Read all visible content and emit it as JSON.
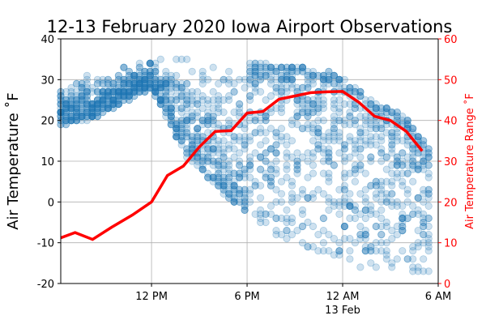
{
  "chart_data": {
    "type": "scatter",
    "title": "12-13 February 2020 Iowa Airport Observations",
    "ylabel": "Air Temperature $^\\circ$F",
    "ylabel_display": "Air Temperature ˚F",
    "y2label": "Air Temperature Range ˚F",
    "x_tick_labels": [
      "12 PM",
      "6 PM",
      "12 AM",
      "6 AM"
    ],
    "x_secondary_label": "13 Feb",
    "x_tick_hours": [
      12,
      18,
      24,
      30
    ],
    "xlim_hours": [
      6.3,
      30
    ],
    "ylim": [
      -20,
      40
    ],
    "y_ticks": [
      -20,
      -10,
      0,
      10,
      20,
      30,
      40
    ],
    "y2lim": [
      0,
      60
    ],
    "y2_ticks": [
      0,
      10,
      20,
      30,
      40,
      50,
      60
    ],
    "grid": true,
    "colors": {
      "scatter": "#1f77b4",
      "range_line": "#ff0000",
      "right_axis": "#ff0000"
    },
    "range_series": {
      "x_hours": [
        6.3,
        7.2,
        8.3,
        9.5,
        10.8,
        12,
        13,
        14,
        15,
        16,
        17,
        18,
        19,
        20,
        21,
        22,
        23,
        24,
        25,
        26,
        27,
        28,
        29
      ],
      "values": [
        11.2,
        12.5,
        10.8,
        13.8,
        16.8,
        20,
        26.5,
        28.8,
        33.5,
        37.3,
        37.5,
        41.8,
        42.2,
        45.2,
        46,
        46.8,
        47,
        47.1,
        44.5,
        41,
        40,
        37.3,
        32.5
      ]
    },
    "scatter_envelope": {
      "x_hours": [
        6.3,
        8,
        10,
        12,
        13,
        14,
        15,
        16,
        17,
        18,
        19,
        20,
        21,
        22,
        23,
        24,
        25,
        26,
        27,
        28,
        29,
        29.7
      ],
      "upper": [
        30,
        31,
        33,
        35,
        36,
        37,
        37,
        36,
        35,
        34,
        34,
        33,
        33,
        33,
        32,
        30,
        27,
        24,
        23,
        20,
        15,
        12
      ],
      "lower": [
        19,
        20,
        24,
        28,
        20,
        12,
        8,
        4,
        0,
        -3,
        -7,
        -9,
        -10,
        -12,
        -13,
        -15,
        -16,
        -16,
        -17,
        -17,
        -18,
        -18
      ]
    }
  }
}
